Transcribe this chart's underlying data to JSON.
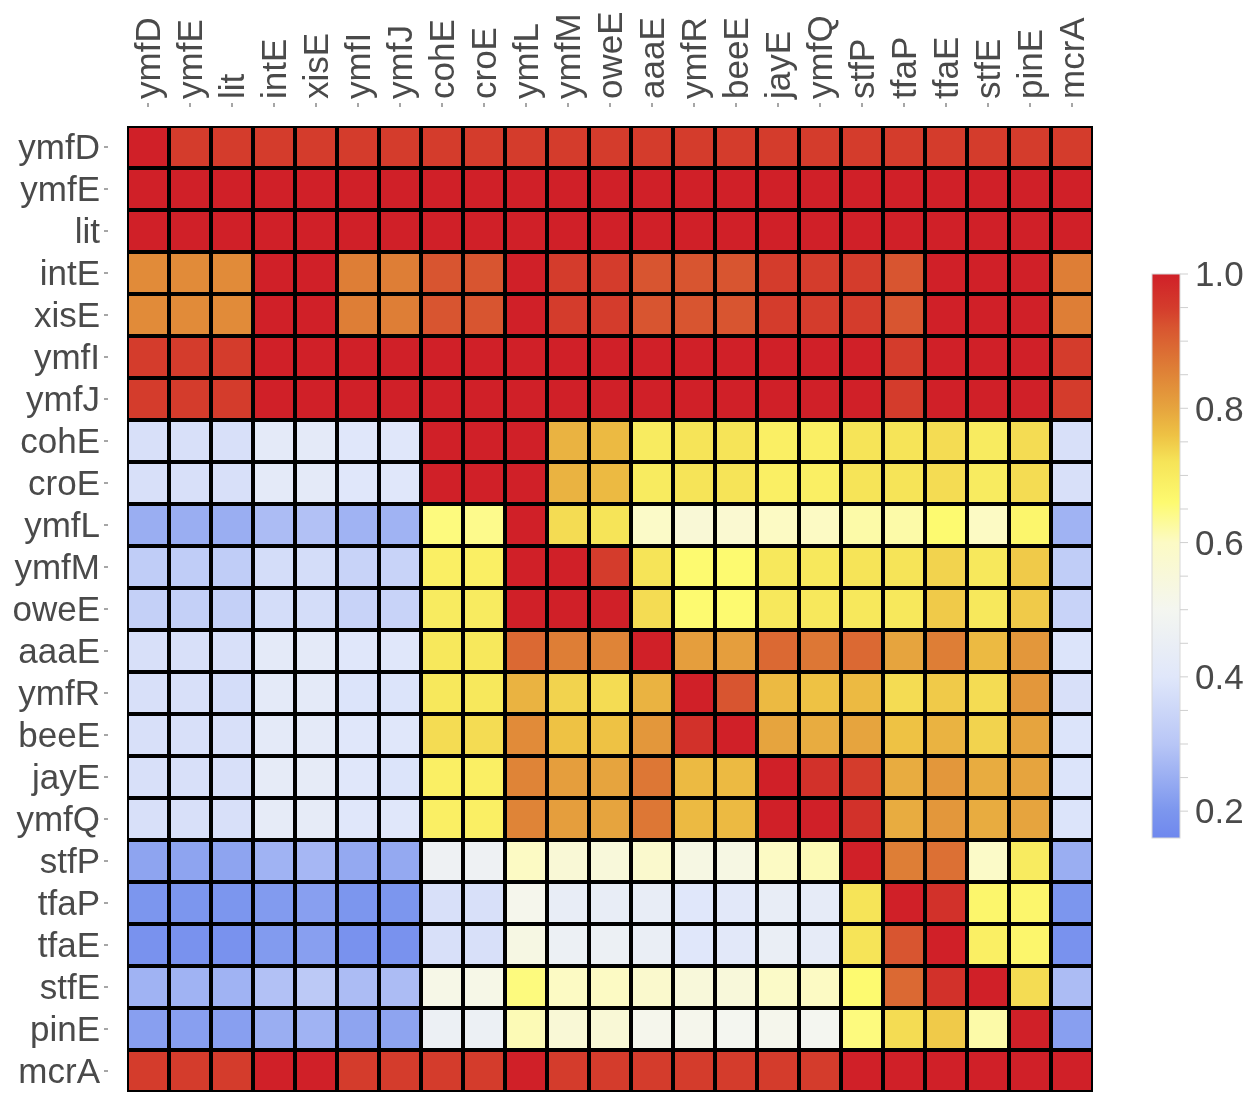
{
  "chart_data": {
    "type": "heatmap",
    "categories": [
      "ymfD",
      "ymfE",
      "lit",
      "intE",
      "xisE",
      "ymfI",
      "ymfJ",
      "cohE",
      "croE",
      "ymfL",
      "ymfM",
      "oweE",
      "aaaE",
      "ymfR",
      "beeE",
      "jayE",
      "ymfQ",
      "stfP",
      "tfaP",
      "tfaE",
      "stfE",
      "pinE",
      "mcrA"
    ],
    "y_categories": [
      "ymfD",
      "ymfE",
      "lit",
      "intE",
      "xisE",
      "ymfI",
      "ymfJ",
      "cohE",
      "croE",
      "ymfL",
      "ymfM",
      "oweE",
      "aaaE",
      "ymfR",
      "beeE",
      "jayE",
      "ymfQ",
      "stfP",
      "tfaP",
      "tfaE",
      "stfE",
      "pinE",
      "mcrA"
    ],
    "cells": [
      [
        1,
        0.95,
        0.95,
        0.95,
        0.95,
        0.95,
        0.95,
        0.95,
        0.95,
        0.95,
        0.95,
        0.95,
        0.95,
        0.95,
        0.95,
        0.95,
        0.95,
        0.95,
        0.95,
        0.95,
        0.95,
        0.95,
        0.95
      ],
      [
        1,
        1,
        1,
        1,
        1,
        1,
        1,
        1,
        1,
        1,
        1,
        1,
        1,
        1,
        1,
        1,
        1,
        1,
        1,
        1,
        1,
        1,
        1
      ],
      [
        1,
        1,
        1,
        1,
        1,
        1,
        1,
        1,
        1,
        1,
        1,
        1,
        1,
        1,
        1,
        1,
        1,
        1,
        1,
        1,
        1,
        1,
        1
      ],
      [
        0.84,
        0.84,
        0.84,
        1,
        1,
        0.86,
        0.86,
        0.92,
        0.92,
        1,
        0.95,
        0.95,
        0.92,
        0.92,
        0.92,
        0.95,
        0.95,
        0.95,
        0.92,
        1,
        1,
        1,
        0.86
      ],
      [
        0.84,
        0.84,
        0.84,
        1,
        1,
        0.86,
        0.86,
        0.92,
        0.92,
        1,
        0.95,
        0.95,
        0.92,
        0.92,
        0.92,
        0.95,
        0.95,
        0.95,
        0.92,
        1,
        1,
        1,
        0.86
      ],
      [
        0.95,
        0.95,
        0.95,
        1,
        1,
        1,
        1,
        1,
        1,
        1,
        1,
        1,
        1,
        1,
        1,
        1,
        1,
        1,
        0.95,
        1,
        1,
        1,
        0.95
      ],
      [
        0.95,
        0.95,
        0.95,
        1,
        1,
        1,
        1,
        1,
        1,
        1,
        1,
        1,
        1,
        1,
        1,
        1,
        1,
        1,
        0.95,
        1,
        1,
        1,
        0.95
      ],
      [
        0.38,
        0.38,
        0.38,
        0.42,
        0.42,
        0.4,
        0.4,
        1,
        1,
        1,
        0.78,
        0.77,
        0.7,
        0.72,
        0.72,
        0.69,
        0.69,
        0.72,
        0.72,
        0.73,
        0.7,
        0.73,
        0.38
      ],
      [
        0.38,
        0.38,
        0.38,
        0.42,
        0.42,
        0.4,
        0.4,
        1,
        1,
        1,
        0.78,
        0.77,
        0.7,
        0.72,
        0.72,
        0.69,
        0.69,
        0.72,
        0.72,
        0.73,
        0.7,
        0.73,
        0.38
      ],
      [
        0.25,
        0.25,
        0.25,
        0.28,
        0.29,
        0.26,
        0.26,
        0.65,
        0.64,
        1,
        0.73,
        0.72,
        0.59,
        0.56,
        0.57,
        0.6,
        0.6,
        0.62,
        0.62,
        0.66,
        0.6,
        0.67,
        0.26
      ],
      [
        0.32,
        0.32,
        0.32,
        0.37,
        0.37,
        0.34,
        0.34,
        0.69,
        0.69,
        1,
        1,
        0.95,
        0.72,
        0.66,
        0.66,
        0.71,
        0.71,
        0.72,
        0.72,
        0.74,
        0.71,
        0.75,
        0.32
      ],
      [
        0.33,
        0.33,
        0.33,
        0.37,
        0.37,
        0.34,
        0.34,
        0.7,
        0.7,
        1,
        1,
        1,
        0.73,
        0.66,
        0.66,
        0.71,
        0.71,
        0.71,
        0.71,
        0.75,
        0.71,
        0.75,
        0.34
      ],
      [
        0.38,
        0.38,
        0.38,
        0.42,
        0.42,
        0.4,
        0.4,
        0.71,
        0.71,
        0.89,
        0.86,
        0.85,
        1,
        0.81,
        0.81,
        0.89,
        0.87,
        0.89,
        0.8,
        0.86,
        0.77,
        0.82,
        0.39
      ],
      [
        0.38,
        0.38,
        0.37,
        0.42,
        0.42,
        0.39,
        0.39,
        0.71,
        0.71,
        0.78,
        0.74,
        0.73,
        0.78,
        1,
        0.92,
        0.77,
        0.76,
        0.77,
        0.73,
        0.75,
        0.73,
        0.82,
        0.38
      ],
      [
        0.38,
        0.38,
        0.38,
        0.42,
        0.42,
        0.4,
        0.4,
        0.73,
        0.73,
        0.84,
        0.76,
        0.76,
        0.82,
        0.97,
        1,
        0.8,
        0.79,
        0.8,
        0.76,
        0.78,
        0.74,
        0.8,
        0.39
      ],
      [
        0.38,
        0.38,
        0.38,
        0.43,
        0.43,
        0.4,
        0.39,
        0.69,
        0.69,
        0.85,
        0.81,
        0.8,
        0.87,
        0.77,
        0.77,
        1,
        0.97,
        0.95,
        0.79,
        0.82,
        0.79,
        0.8,
        0.39
      ],
      [
        0.38,
        0.38,
        0.38,
        0.43,
        0.43,
        0.4,
        0.4,
        0.69,
        0.69,
        0.85,
        0.81,
        0.8,
        0.87,
        0.77,
        0.77,
        1,
        1,
        0.97,
        0.79,
        0.82,
        0.79,
        0.8,
        0.39
      ],
      [
        0.23,
        0.23,
        0.23,
        0.26,
        0.27,
        0.24,
        0.24,
        0.47,
        0.47,
        0.6,
        0.56,
        0.55,
        0.58,
        0.53,
        0.53,
        0.6,
        0.61,
        1,
        0.86,
        0.88,
        0.59,
        0.7,
        0.25
      ],
      [
        0.2,
        0.2,
        0.2,
        0.21,
        0.22,
        0.2,
        0.2,
        0.38,
        0.38,
        0.51,
        0.44,
        0.44,
        0.44,
        0.4,
        0.41,
        0.44,
        0.43,
        0.72,
        1,
        0.97,
        0.67,
        0.67,
        0.2
      ],
      [
        0.19,
        0.19,
        0.19,
        0.21,
        0.22,
        0.19,
        0.19,
        0.38,
        0.38,
        0.53,
        0.46,
        0.46,
        0.45,
        0.4,
        0.41,
        0.45,
        0.43,
        0.72,
        0.92,
        1,
        0.69,
        0.67,
        0.19
      ],
      [
        0.26,
        0.26,
        0.26,
        0.29,
        0.31,
        0.28,
        0.28,
        0.52,
        0.52,
        0.65,
        0.6,
        0.6,
        0.58,
        0.55,
        0.55,
        0.59,
        0.6,
        0.66,
        0.89,
        0.97,
        1,
        0.73,
        0.28
      ],
      [
        0.22,
        0.22,
        0.22,
        0.25,
        0.26,
        0.23,
        0.23,
        0.46,
        0.46,
        0.61,
        0.56,
        0.56,
        0.51,
        0.51,
        0.5,
        0.51,
        0.5,
        0.65,
        0.73,
        0.75,
        0.62,
        1,
        0.22
      ],
      [
        0.95,
        0.95,
        0.95,
        1,
        1,
        0.95,
        0.95,
        0.95,
        0.95,
        1,
        0.95,
        0.95,
        0.95,
        0.95,
        0.95,
        0.95,
        0.95,
        1,
        1,
        1,
        1,
        1,
        1
      ]
    ],
    "clim": [
      0.16,
      1
    ],
    "cticks": [
      0.2,
      {
        "value": 0.25,
        "label": null
      },
      {
        "value": 0.3,
        "label": null
      },
      {
        "value": 0.35,
        "label": null
      },
      0.4,
      {
        "value": 0.45,
        "label": null
      },
      {
        "value": 0.5,
        "label": null
      },
      {
        "value": 0.55,
        "label": null
      },
      0.6,
      {
        "value": 0.65,
        "label": null
      },
      {
        "value": 0.7,
        "label": null
      },
      {
        "value": 0.75,
        "label": null
      },
      0.8,
      {
        "value": 0.85,
        "label": null
      },
      {
        "value": 0.9,
        "label": null
      },
      {
        "value": 0.95,
        "label": null
      },
      {
        "value": 1,
        "label": "1.0"
      }
    ]
  }
}
